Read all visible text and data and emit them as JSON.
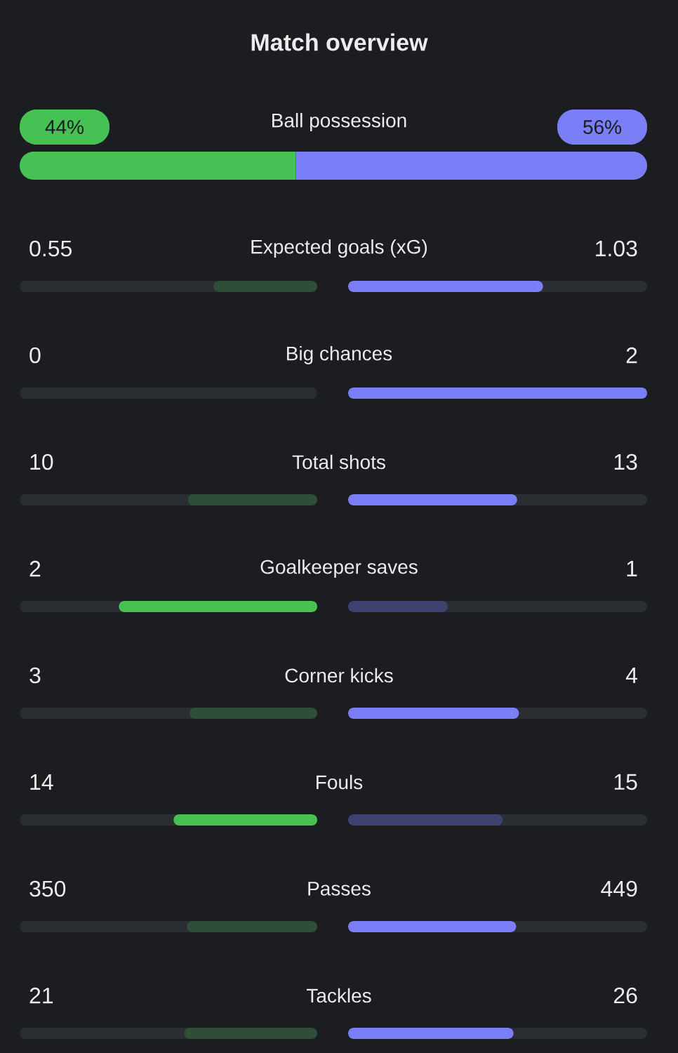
{
  "chart_data": [
    {
      "type": "other",
      "title": "Match overview",
      "categories": [
        "Ball possession"
      ],
      "series": [
        {
          "color": "#45c253",
          "values": [
            44
          ],
          "value_labels": [
            "44%"
          ]
        },
        {
          "color": "#7b7ff7",
          "values": [
            56
          ],
          "value_labels": [
            "56%"
          ]
        }
      ]
    },
    {
      "type": "other",
      "categories": [
        "Expected goals (xG)",
        "Big chances",
        "Total shots",
        "Goalkeeper saves",
        "Corner kicks",
        "Fouls",
        "Passes",
        "Tackles"
      ],
      "data_labels": true,
      "series": [
        {
          "values": [
            0.55,
            0,
            10,
            2,
            3,
            14,
            350,
            21
          ],
          "colors": [
            "#2f4e39",
            "#2f4e39",
            "#2f4e39",
            "#45c253",
            "#2f4e39",
            "#45c253",
            "#2f4e39",
            "#2f4e39"
          ]
        },
        {
          "values": [
            1.03,
            2,
            13,
            1,
            4,
            15,
            449,
            26
          ],
          "colors": [
            "#7b7ff7",
            "#7b7ff7",
            "#7b7ff7",
            "#3f4270",
            "#7b7ff7",
            "#3f4270",
            "#7b7ff7",
            "#7b7ff7"
          ]
        }
      ]
    }
  ]
}
